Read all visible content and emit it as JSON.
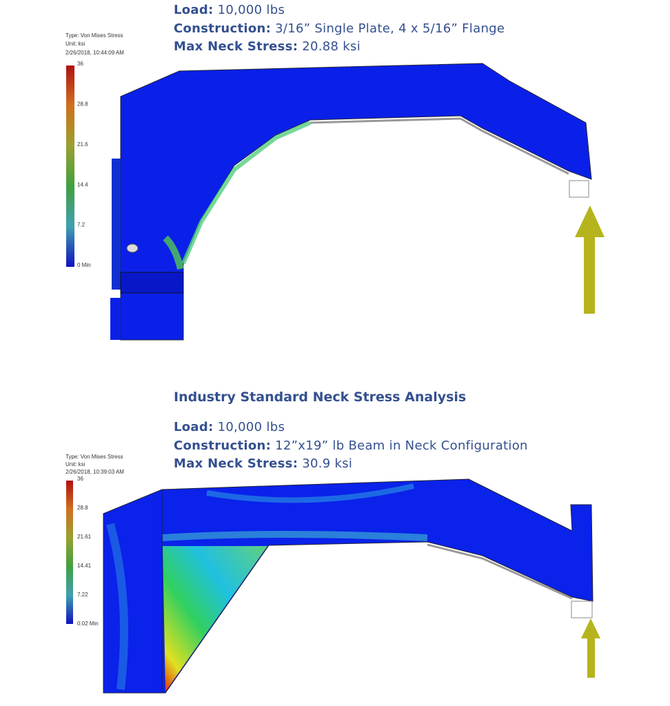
{
  "panels": [
    {
      "lines": [
        {
          "label": "Load:",
          "value": "10,000 lbs"
        },
        {
          "label": "Construction:",
          "value": "3/16” Single Plate, 4 x 5/16” Flange"
        },
        {
          "label": "Max Neck Stress:",
          "value": "20.88 ksi"
        }
      ],
      "legend": {
        "type": "Type: Von Mises Stress",
        "unit": "Unit: ksi",
        "date": "2/26/2018, 10:44:09 AM",
        "ticks": [
          "36",
          "28.8",
          "21.6",
          "14.4",
          "7.2",
          "0 Min"
        ]
      }
    },
    {
      "title": "Industry Standard Neck Stress Analysis",
      "lines": [
        {
          "label": "Load:",
          "value": "10,000 lbs"
        },
        {
          "label": "Construction:",
          "value": "12”x19” lb Beam in Neck Configuration"
        },
        {
          "label": "Max Neck Stress:",
          "value": "30.9 ksi"
        }
      ],
      "legend": {
        "type": "Type: Von Mises Stress",
        "unit": "Unit: ksi",
        "date": "2/26/2018, 10:39:03 AM",
        "ticks": [
          "36",
          "28.8",
          "21.61",
          "14.41",
          "7.22",
          "0.02 Min"
        ]
      }
    }
  ]
}
